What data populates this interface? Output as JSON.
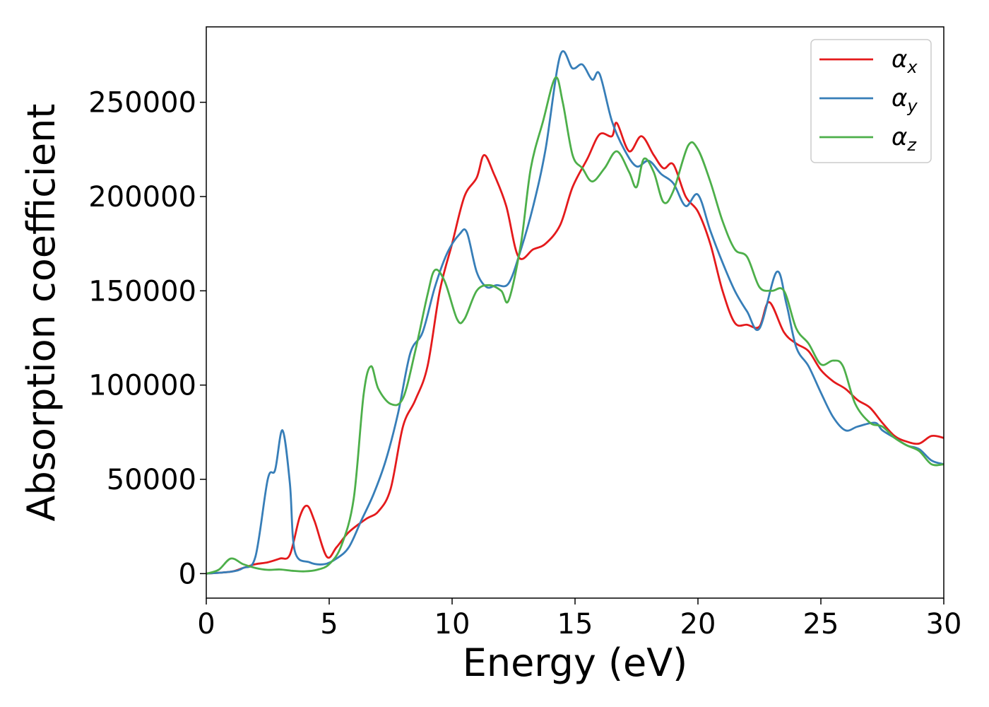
{
  "chart_data": {
    "type": "line",
    "title": "",
    "xlabel": "Energy (eV)",
    "ylabel": "Absorption coefficient",
    "xlim": [
      0,
      30
    ],
    "ylim": [
      -13000,
      290000
    ],
    "xticks": [
      0,
      5,
      10,
      15,
      20,
      25,
      30
    ],
    "xtick_labels": [
      "0",
      "5",
      "10",
      "15",
      "20",
      "25",
      "30"
    ],
    "yticks": [
      0,
      50000,
      100000,
      150000,
      200000,
      250000
    ],
    "ytick_labels": [
      "0",
      "50000",
      "100000",
      "150000",
      "200000",
      "250000"
    ],
    "grid": false,
    "legend_position": "top-right",
    "series": [
      {
        "name": "α",
        "subscript": "x",
        "color": "#e41a1c",
        "points": [
          [
            0,
            0
          ],
          [
            1,
            1000
          ],
          [
            1.5,
            3000
          ],
          [
            2,
            5000
          ],
          [
            2.5,
            6000
          ],
          [
            3,
            8000
          ],
          [
            3.4,
            10000
          ],
          [
            3.8,
            30000
          ],
          [
            4.1,
            36000
          ],
          [
            4.4,
            28000
          ],
          [
            4.9,
            9000
          ],
          [
            5.3,
            14000
          ],
          [
            5.8,
            22000
          ],
          [
            6.5,
            29000
          ],
          [
            7,
            33000
          ],
          [
            7.5,
            45000
          ],
          [
            8,
            78000
          ],
          [
            8.5,
            92000
          ],
          [
            9,
            110000
          ],
          [
            9.5,
            150000
          ],
          [
            10,
            175000
          ],
          [
            10.5,
            200000
          ],
          [
            11,
            210000
          ],
          [
            11.3,
            222000
          ],
          [
            11.7,
            212000
          ],
          [
            12.2,
            195000
          ],
          [
            12.7,
            168000
          ],
          [
            13.3,
            172000
          ],
          [
            13.8,
            175000
          ],
          [
            14.4,
            185000
          ],
          [
            14.9,
            205000
          ],
          [
            15.5,
            220000
          ],
          [
            16,
            233000
          ],
          [
            16.5,
            232000
          ],
          [
            16.7,
            239000
          ],
          [
            17.2,
            224000
          ],
          [
            17.7,
            232000
          ],
          [
            18.2,
            222000
          ],
          [
            18.6,
            215000
          ],
          [
            19,
            217000
          ],
          [
            19.5,
            200000
          ],
          [
            20,
            192000
          ],
          [
            20.5,
            175000
          ],
          [
            21,
            150000
          ],
          [
            21.5,
            133000
          ],
          [
            22,
            132000
          ],
          [
            22.5,
            131000
          ],
          [
            22.9,
            144000
          ],
          [
            23.5,
            128000
          ],
          [
            24,
            122000
          ],
          [
            24.5,
            118000
          ],
          [
            25,
            108000
          ],
          [
            25.5,
            102000
          ],
          [
            26,
            98000
          ],
          [
            26.5,
            92000
          ],
          [
            27,
            88000
          ],
          [
            27.5,
            80000
          ],
          [
            28,
            73000
          ],
          [
            28.5,
            70000
          ],
          [
            29,
            69000
          ],
          [
            29.5,
            73000
          ],
          [
            30,
            72000
          ]
        ]
      },
      {
        "name": "α",
        "subscript": "y",
        "color": "#377eb8",
        "points": [
          [
            0,
            0
          ],
          [
            1,
            1000
          ],
          [
            1.5,
            3000
          ],
          [
            2,
            9000
          ],
          [
            2.5,
            50000
          ],
          [
            2.8,
            55000
          ],
          [
            3.1,
            76000
          ],
          [
            3.4,
            48000
          ],
          [
            3.6,
            12000
          ],
          [
            4.2,
            6000
          ],
          [
            4.8,
            5000
          ],
          [
            5.3,
            8000
          ],
          [
            5.8,
            14000
          ],
          [
            6.3,
            28000
          ],
          [
            6.8,
            42000
          ],
          [
            7.3,
            60000
          ],
          [
            7.8,
            85000
          ],
          [
            8.3,
            117000
          ],
          [
            8.8,
            128000
          ],
          [
            9.3,
            152000
          ],
          [
            9.8,
            170000
          ],
          [
            10.3,
            180000
          ],
          [
            10.6,
            181000
          ],
          [
            11,
            160000
          ],
          [
            11.4,
            152000
          ],
          [
            11.8,
            153000
          ],
          [
            12.3,
            154000
          ],
          [
            12.8,
            172000
          ],
          [
            13.3,
            195000
          ],
          [
            13.8,
            225000
          ],
          [
            14.4,
            275000
          ],
          [
            14.9,
            268000
          ],
          [
            15.3,
            270000
          ],
          [
            15.7,
            262000
          ],
          [
            16,
            265000
          ],
          [
            16.5,
            240000
          ],
          [
            17,
            225000
          ],
          [
            17.5,
            216000
          ],
          [
            18,
            219000
          ],
          [
            18.5,
            212000
          ],
          [
            19,
            207000
          ],
          [
            19.5,
            195000
          ],
          [
            20,
            201000
          ],
          [
            20.5,
            182000
          ],
          [
            21,
            165000
          ],
          [
            21.5,
            150000
          ],
          [
            22,
            139000
          ],
          [
            22.5,
            130000
          ],
          [
            23.2,
            160000
          ],
          [
            23.6,
            143000
          ],
          [
            24,
            120000
          ],
          [
            24.5,
            110000
          ],
          [
            25,
            96000
          ],
          [
            25.5,
            83000
          ],
          [
            26,
            76000
          ],
          [
            26.5,
            78000
          ],
          [
            27.2,
            80000
          ],
          [
            27.5,
            76000
          ],
          [
            28,
            72000
          ],
          [
            28.5,
            68000
          ],
          [
            29,
            66000
          ],
          [
            29.5,
            60000
          ],
          [
            30,
            58000
          ]
        ]
      },
      {
        "name": "α",
        "subscript": "z",
        "color": "#4daf4a",
        "points": [
          [
            0,
            0
          ],
          [
            0.5,
            2000
          ],
          [
            1,
            8000
          ],
          [
            1.5,
            5000
          ],
          [
            2,
            3000
          ],
          [
            2.5,
            2000
          ],
          [
            3,
            2200
          ],
          [
            3.5,
            1500
          ],
          [
            4,
            1200
          ],
          [
            4.5,
            2000
          ],
          [
            5,
            5000
          ],
          [
            5.5,
            15000
          ],
          [
            6,
            40000
          ],
          [
            6.4,
            95000
          ],
          [
            6.7,
            110000
          ],
          [
            7,
            98000
          ],
          [
            7.5,
            90000
          ],
          [
            8,
            93000
          ],
          [
            8.5,
            118000
          ],
          [
            9,
            148000
          ],
          [
            9.3,
            161000
          ],
          [
            9.7,
            155000
          ],
          [
            10.2,
            135000
          ],
          [
            10.5,
            135000
          ],
          [
            11,
            150000
          ],
          [
            11.5,
            153000
          ],
          [
            12,
            150000
          ],
          [
            12.3,
            145000
          ],
          [
            12.8,
            175000
          ],
          [
            13.2,
            215000
          ],
          [
            13.7,
            240000
          ],
          [
            14.2,
            263000
          ],
          [
            14.5,
            250000
          ],
          [
            14.9,
            222000
          ],
          [
            15.3,
            215000
          ],
          [
            15.7,
            208000
          ],
          [
            16.2,
            215000
          ],
          [
            16.7,
            224000
          ],
          [
            17.2,
            213000
          ],
          [
            17.5,
            205000
          ],
          [
            17.8,
            220000
          ],
          [
            18.2,
            213000
          ],
          [
            18.6,
            197000
          ],
          [
            19,
            203000
          ],
          [
            19.6,
            227000
          ],
          [
            20,
            225000
          ],
          [
            20.5,
            208000
          ],
          [
            21,
            187000
          ],
          [
            21.5,
            172000
          ],
          [
            22,
            168000
          ],
          [
            22.5,
            152000
          ],
          [
            23,
            150000
          ],
          [
            23.5,
            150000
          ],
          [
            24,
            130000
          ],
          [
            24.5,
            122000
          ],
          [
            25,
            111000
          ],
          [
            25.5,
            113000
          ],
          [
            25.9,
            110000
          ],
          [
            26.4,
            90000
          ],
          [
            27,
            80000
          ],
          [
            27.5,
            78000
          ],
          [
            28,
            72000
          ],
          [
            28.5,
            68000
          ],
          [
            29,
            65000
          ],
          [
            29.5,
            58000
          ],
          [
            30,
            58000
          ]
        ]
      }
    ]
  }
}
